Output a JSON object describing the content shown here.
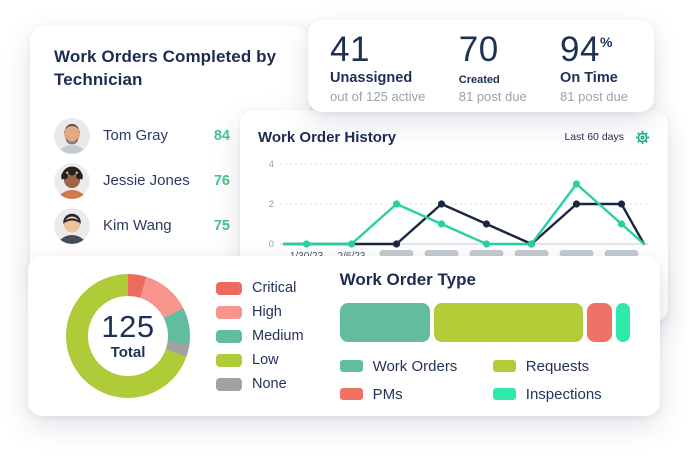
{
  "technician_card": {
    "title": "Work Orders Completed by Technician",
    "technicians": [
      {
        "name": "Tom Gray",
        "completed": "84"
      },
      {
        "name": "Jessie Jones",
        "completed": "76"
      },
      {
        "name": "Kim Wang",
        "completed": "75"
      }
    ]
  },
  "stats_card": {
    "stats": [
      {
        "value": "41",
        "suffix": "",
        "label": "Unassigned",
        "sub": "out of 125 active"
      },
      {
        "value": "70",
        "suffix": "",
        "label": "Created",
        "sub": "81 post due"
      },
      {
        "value": "94",
        "suffix": "%",
        "label": "On Time",
        "sub": "81 post due"
      }
    ]
  },
  "history_card": {
    "title": "Work Order History",
    "range_label": "Last 60 days",
    "gear_color": "#1BA784"
  },
  "chart_data": [
    {
      "id": "work-order-history",
      "type": "line",
      "title": "Work Order History",
      "ylim": [
        0,
        4
      ],
      "yticks": [
        0,
        2,
        4
      ],
      "x_tick_labels": [
        "1/30/23",
        "2/6/23",
        "",
        "",
        "",
        "",
        "",
        ""
      ],
      "masked_ticks_from_index": 2,
      "masked_tick_style": "gray-pill",
      "grid": "dashed-horizontal",
      "includes_unmarked_edge_points": true,
      "series": [
        {
          "name": "green-series",
          "color": "#29D19E",
          "values": [
            0,
            0,
            0,
            2,
            1,
            0,
            0,
            3,
            1,
            0
          ],
          "dot_ticks": [
            0,
            1,
            2,
            3,
            4,
            5,
            6,
            7
          ]
        },
        {
          "name": "navy-series",
          "color": "#1A2643",
          "values": [
            0,
            0,
            0,
            0,
            2,
            1,
            0,
            2,
            2,
            0
          ],
          "dot_ticks": [
            2,
            3,
            4,
            5,
            6,
            7
          ]
        }
      ],
      "axis_colors": {
        "ytick_text": "#9BA0A8",
        "xtick_text": "#45506A",
        "axis_line": "#C6CBD2",
        "gridline": "#DCDEE2",
        "masked_pill": "#C4CAD0"
      }
    },
    {
      "id": "priority-donut",
      "type": "pie",
      "center_value": "125",
      "center_label": "Total",
      "total": 125,
      "slices": [
        {
          "label": "Critical",
          "value": 6,
          "color": "#EC6A5E"
        },
        {
          "label": "High",
          "value": 16,
          "color": "#F7958D"
        },
        {
          "label": "Medium",
          "value": 12,
          "color": "#62BDA0"
        },
        {
          "label": "None",
          "value": 4,
          "color": "#A2A2A2"
        },
        {
          "label": "Low",
          "value": 87,
          "color": "#AFCB37"
        }
      ],
      "legend_order": [
        "Critical",
        "High",
        "Medium",
        "Low",
        "None"
      ]
    },
    {
      "id": "work-order-type",
      "type": "bar",
      "title": "Work Order Type",
      "orientation": "horizontal-stacked",
      "segments": [
        {
          "label": "Work Orders",
          "pct": 31.5,
          "color": "#63BCA0"
        },
        {
          "label": "Requests",
          "pct": 52,
          "color": "#B2CC38"
        },
        {
          "label": "PMs",
          "pct": 8.5,
          "color": "#F07166"
        },
        {
          "label": "Inspections",
          "pct": 5,
          "color": "#2EE9A9"
        }
      ]
    }
  ]
}
